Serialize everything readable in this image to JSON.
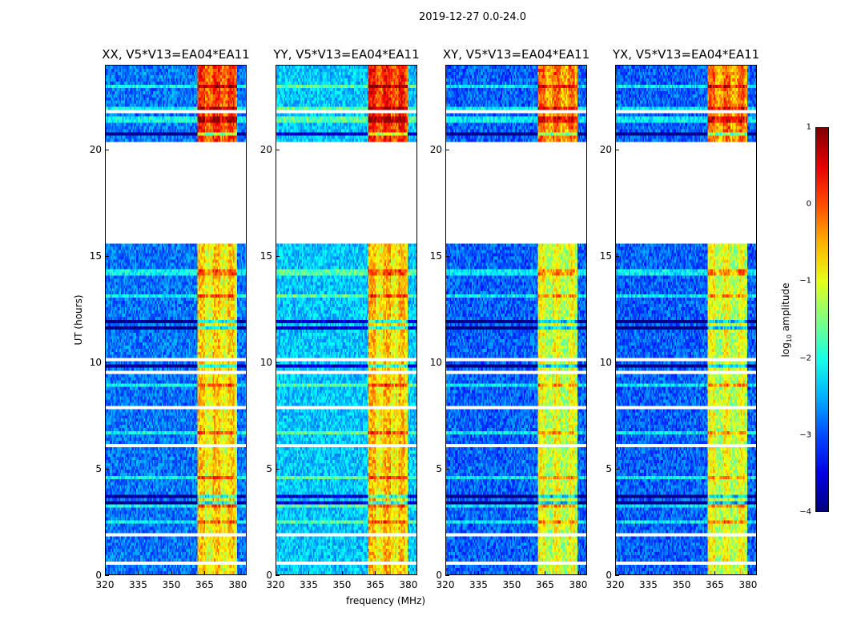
{
  "chart_data": {
    "type": "heatmap",
    "title": "2019-12-27 0.0-24.0",
    "xlabel": "frequency (MHz)",
    "ylabel": "UT (hours)",
    "xlim": [
      320,
      384
    ],
    "ylim": [
      0,
      24
    ],
    "xticks": [
      "320",
      "335",
      "350",
      "365",
      "380"
    ],
    "xtick_values": [
      320,
      335,
      350,
      365,
      380
    ],
    "yticks": [
      "0",
      "5",
      "10",
      "15",
      "20"
    ],
    "ytick_values": [
      0,
      5,
      10,
      15,
      20
    ],
    "panels": [
      {
        "title": "XX, V5*V13=EA04*EA11",
        "band_level": -0.6,
        "base_level": -2.8
      },
      {
        "title": "YY, V5*V13=EA04*EA11",
        "band_level": -0.5,
        "base_level": -2.4
      },
      {
        "title": "XY, V5*V13=EA04*EA11",
        "band_level": -0.9,
        "base_level": -2.9
      },
      {
        "title": "YX, V5*V13=EA04*EA11",
        "band_level": -0.9,
        "base_level": -2.9
      }
    ],
    "bright_band_mhz": [
      362,
      380
    ],
    "missing_hours": [
      [
        15.6,
        20.4
      ],
      [
        21.7,
        21.95
      ]
    ],
    "colorbar": {
      "label_prefix": "log",
      "label_sub": "10",
      "label_suffix": " amplitude",
      "range": [
        -4,
        1
      ],
      "ticks": [
        "1",
        "0",
        "−1",
        "−2",
        "−3",
        "−4"
      ],
      "tick_values": [
        1,
        0,
        -1,
        -2,
        -3,
        -4
      ],
      "colormap": "jet"
    }
  }
}
